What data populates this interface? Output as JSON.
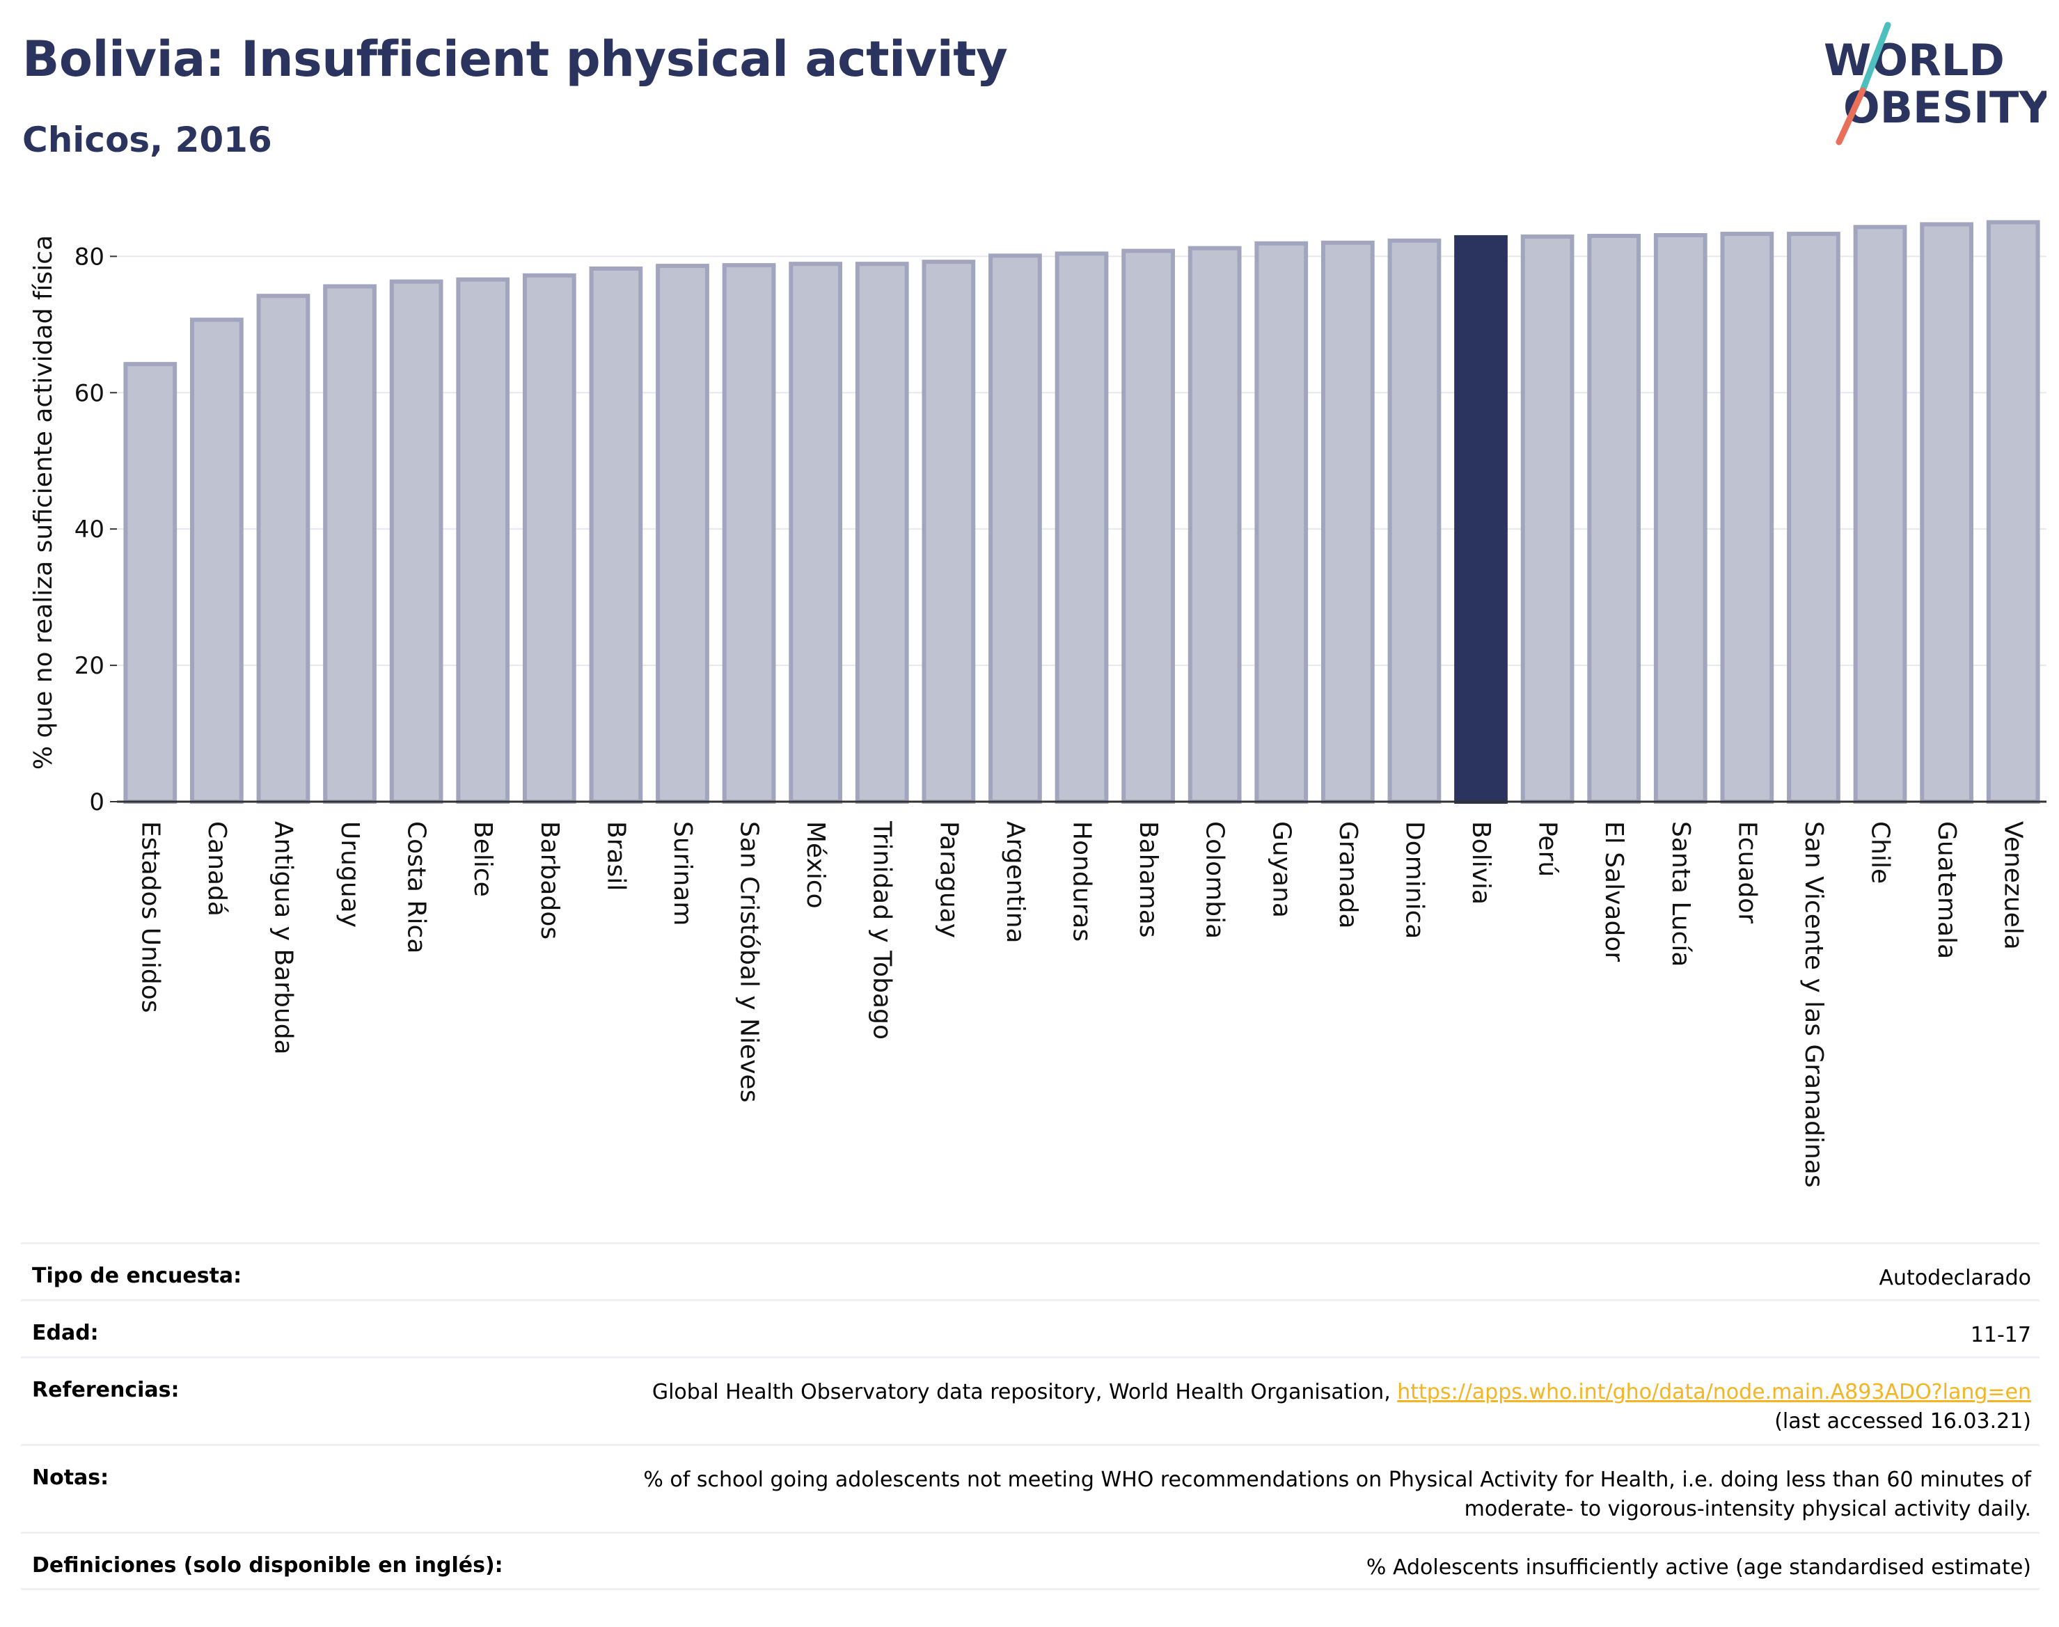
{
  "header": {
    "title": "Bolivia: Insufficient physical activity",
    "subtitle": "Chicos, 2016"
  },
  "logo": {
    "line1": "WORLD",
    "line2": "OBESITY",
    "slash_colors": [
      "#4ebfbf",
      "#e8705a"
    ],
    "text_color": "#2a345e"
  },
  "colors": {
    "bar_fill": "#bfc2d0",
    "bar_stroke": "#a1a6be",
    "highlight": "#2a345e",
    "grid": "#e6e8ef"
  },
  "chart_data": {
    "type": "bar",
    "title": "",
    "xlabel": "",
    "ylabel": "% que no realiza suficiente actividad física",
    "ylim": [
      0,
      88
    ],
    "yticks": [
      0,
      20,
      40,
      60,
      80
    ],
    "grid": true,
    "highlight": "Bolivia",
    "categories": [
      "Estados Unidos",
      "Canadá",
      "Antigua y Barbuda",
      "Uruguay",
      "Costa Rica",
      "Belice",
      "Barbados",
      "Brasil",
      "Surinam",
      "San Cristóbal y Nieves",
      "México",
      "Trinidad y Tobago",
      "Paraguay",
      "Argentina",
      "Honduras",
      "Bahamas",
      "Colombia",
      "Guyana",
      "Granada",
      "Dominica",
      "Bolivia",
      "Perú",
      "El Salvador",
      "Santa Lucía",
      "Ecuador",
      "San Vicente y las Granadinas",
      "Chile",
      "Guatemala",
      "Venezuela"
    ],
    "values": [
      64.2,
      70.7,
      74.2,
      75.6,
      76.3,
      76.6,
      77.2,
      78.2,
      78.6,
      78.7,
      78.9,
      78.9,
      79.2,
      80.1,
      80.4,
      80.8,
      81.2,
      81.9,
      82.0,
      82.3,
      82.8,
      82.9,
      83.0,
      83.1,
      83.3,
      83.3,
      84.3,
      84.7,
      85.0
    ]
  },
  "info": {
    "rows": [
      {
        "label": "Tipo de encuesta:",
        "value": "Autodeclarado"
      },
      {
        "label": "Edad:",
        "value": "11-17"
      },
      {
        "label": "Referencias:",
        "value_prefix": "Global Health Observatory data repository, World Health Organisation, ",
        "link": "https://apps.who.int/gho/data/node.main.A893ADO?lang=en",
        "value_suffix": "(last accessed 16.03.21)"
      },
      {
        "label": "Notas:",
        "value": "% of school going adolescents not meeting WHO recommendations on Physical Activity for Health, i.e. doing less than 60 minutes of moderate- to vigorous-intensity physical activity daily."
      },
      {
        "label": "Definiciones (solo disponible en inglés):",
        "value": "% Adolescents insufficiently active (age standardised estimate)"
      }
    ]
  }
}
